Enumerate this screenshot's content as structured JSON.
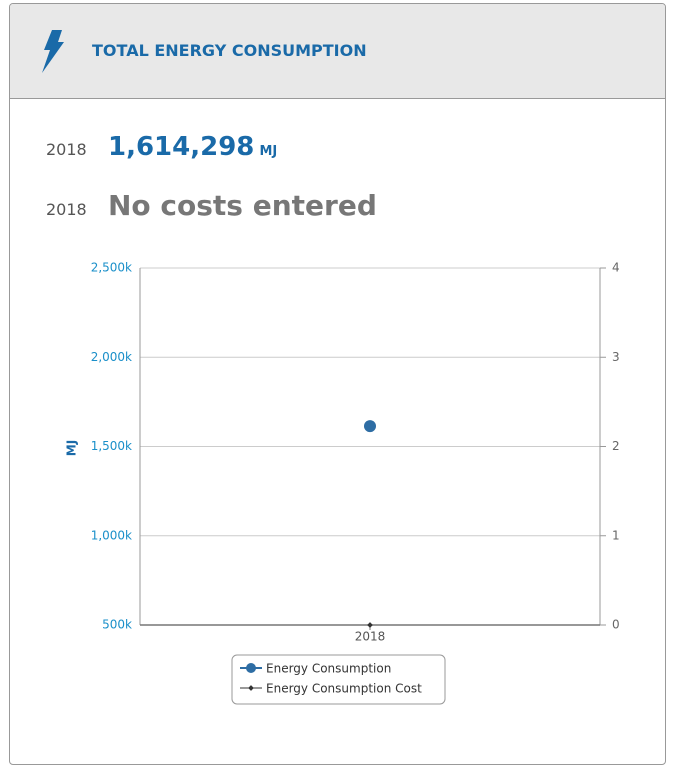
{
  "header": {
    "title": "TOTAL ENERGY CONSUMPTION"
  },
  "stats": [
    {
      "year": "2018",
      "value": "1,614,298",
      "unit": "MJ"
    },
    {
      "year": "2018",
      "text": "No costs entered"
    }
  ],
  "chart_data": {
    "type": "line",
    "ylabel": "MJ",
    "categories": [
      "2018"
    ],
    "series": [
      {
        "name": "Energy Consumption",
        "color": "#2e6da4",
        "values": [
          1614298
        ]
      },
      {
        "name": "Energy Consumption Cost",
        "color": "#333333",
        "values": [
          0
        ],
        "axis": "y2"
      }
    ],
    "ylim": [
      500000,
      2500000
    ],
    "yticks": [
      {
        "value": 500000,
        "label": "500k"
      },
      {
        "value": 1000000,
        "label": "1,000k"
      },
      {
        "value": 1500000,
        "label": "1,500k"
      },
      {
        "value": 2000000,
        "label": "2,000k"
      },
      {
        "value": 2500000,
        "label": "2,500k"
      }
    ],
    "y2lim": [
      0,
      4
    ],
    "y2ticks": [
      0,
      1,
      2,
      3,
      4
    ],
    "grid": true
  }
}
